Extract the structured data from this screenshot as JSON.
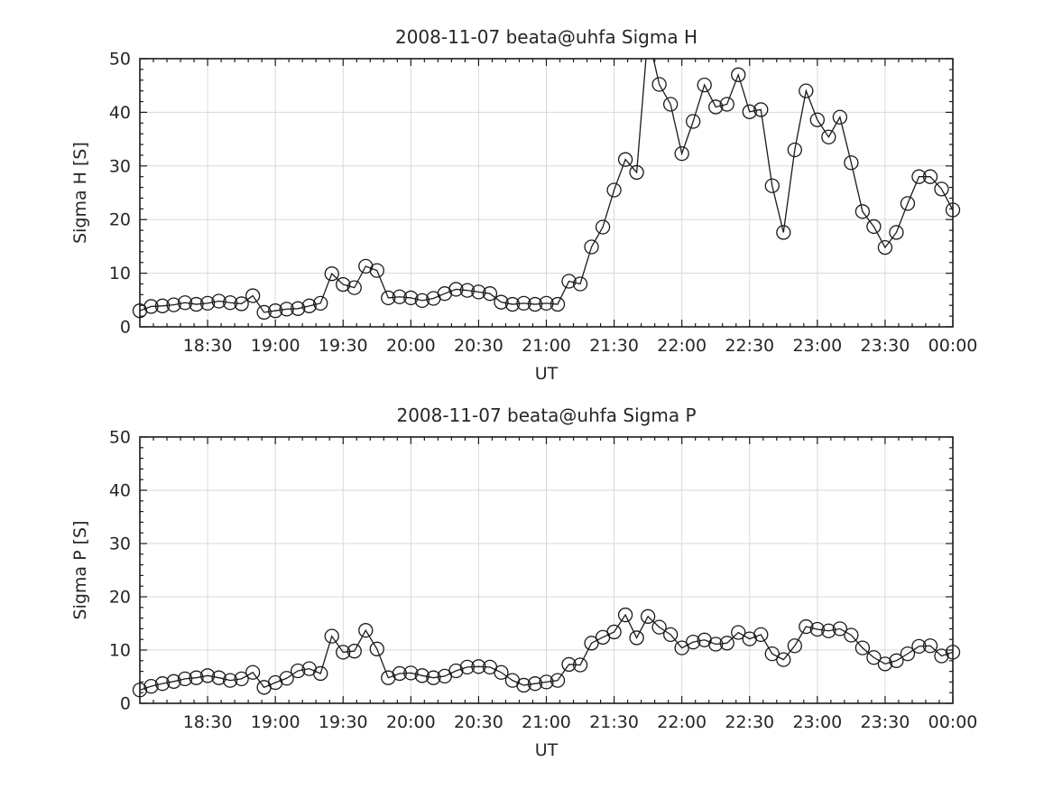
{
  "figure": {
    "background": "#ffffff",
    "axis_color": "#1a1a1a",
    "text_color": "#262626",
    "grid_color": "#dadada",
    "line_color": "#1a1a1a",
    "marker": "circle"
  },
  "chart_data": [
    {
      "type": "line",
      "series_name": "Sigma H",
      "title": "2008-11-07  beata@uhfa Sigma H",
      "xlabel": "UT",
      "ylabel": "Sigma H [S]",
      "ylim": [
        0,
        50
      ],
      "yticks": [
        0,
        10,
        20,
        30,
        40,
        50
      ],
      "y_minor_step": 2,
      "grid": true,
      "legend": "none",
      "x_range_minutes_after_1800": [
        0,
        360
      ],
      "xticks_minutes": [
        30,
        60,
        90,
        120,
        150,
        180,
        210,
        240,
        270,
        300,
        330,
        360
      ],
      "xtick_labels": [
        "18:30",
        "19:00",
        "19:30",
        "20:00",
        "20:30",
        "21:00",
        "21:30",
        "22:00",
        "22:30",
        "23:00",
        "23:30",
        "00:00"
      ],
      "x_minor_step_minutes": 6,
      "series_start_time": "18:00",
      "sample_step_minutes": 5,
      "values": [
        3.0,
        3.8,
        3.9,
        4.1,
        4.5,
        4.2,
        4.4,
        4.8,
        4.5,
        4.3,
        5.8,
        2.7,
        3.0,
        3.3,
        3.4,
        3.9,
        4.4,
        9.9,
        7.9,
        7.3,
        11.3,
        10.5,
        5.4,
        5.6,
        5.4,
        4.9,
        5.3,
        6.2,
        7.0,
        6.8,
        6.5,
        6.2,
        4.6,
        4.2,
        4.4,
        4.2,
        4.4,
        4.2,
        8.5,
        8.0,
        14.9,
        18.6,
        25.5,
        31.2,
        28.8,
        54.5,
        45.2,
        41.5,
        32.3,
        38.3,
        45.1,
        41.0,
        41.5,
        47.0,
        40.1,
        40.5,
        26.3,
        17.6,
        33.0,
        44.0,
        38.6,
        35.4,
        39.1,
        30.6,
        21.5,
        18.7,
        14.8,
        17.6,
        23.0,
        28.0,
        28.0,
        25.7,
        21.8
      ],
      "note": "point at 21:45 (~54) lies above the y-axis maximum and its marker is clipped"
    },
    {
      "type": "line",
      "series_name": "Sigma P",
      "title": "2008-11-07  beata@uhfa Sigma P",
      "xlabel": "UT",
      "ylabel": "Sigma P [S]",
      "ylim": [
        0,
        50
      ],
      "yticks": [
        0,
        10,
        20,
        30,
        40,
        50
      ],
      "y_minor_step": 2,
      "grid": true,
      "legend": "none",
      "x_range_minutes_after_1800": [
        0,
        360
      ],
      "xticks_minutes": [
        30,
        60,
        90,
        120,
        150,
        180,
        210,
        240,
        270,
        300,
        330,
        360
      ],
      "xtick_labels": [
        "18:30",
        "19:00",
        "19:30",
        "20:00",
        "20:30",
        "21:00",
        "21:30",
        "22:00",
        "22:30",
        "23:00",
        "23:30",
        "00:00"
      ],
      "x_minor_step_minutes": 6,
      "series_start_time": "18:00",
      "sample_step_minutes": 5,
      "values": [
        2.5,
        3.2,
        3.7,
        4.1,
        4.6,
        4.8,
        5.2,
        4.8,
        4.3,
        4.6,
        5.8,
        3.0,
        3.9,
        4.7,
        6.1,
        6.5,
        5.6,
        12.6,
        9.6,
        9.8,
        13.7,
        10.2,
        4.8,
        5.6,
        5.7,
        5.2,
        4.8,
        5.1,
        6.1,
        6.8,
        6.9,
        6.8,
        5.8,
        4.3,
        3.4,
        3.7,
        4.0,
        4.3,
        7.3,
        7.2,
        11.3,
        12.4,
        13.4,
        16.6,
        12.3,
        16.3,
        14.3,
        12.9,
        10.4,
        11.5,
        11.9,
        11.1,
        11.3,
        13.3,
        12.1,
        12.9,
        9.3,
        8.2,
        10.8,
        14.4,
        13.9,
        13.6,
        14.0,
        12.8,
        10.4,
        8.6,
        7.4,
        8.0,
        9.3,
        10.7,
        10.8,
        8.9,
        9.6
      ]
    }
  ]
}
